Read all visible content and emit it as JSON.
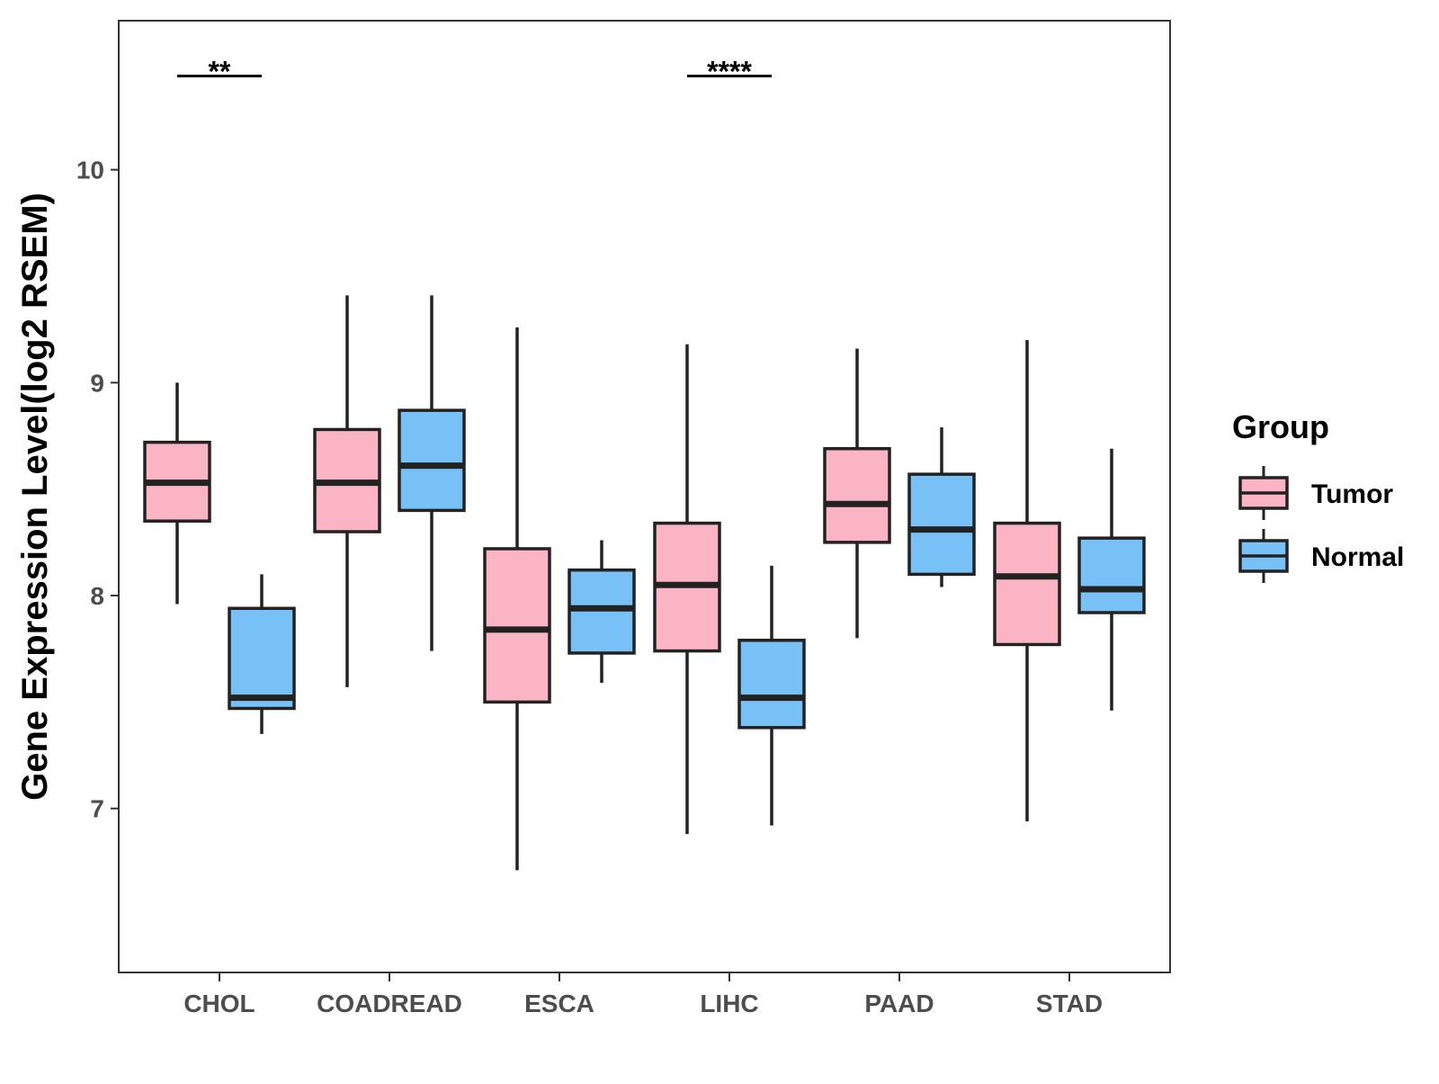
{
  "chart_data": {
    "type": "boxplot",
    "title": "",
    "xlabel": "",
    "ylabel": "Gene Expression Level(log2 RSEM)",
    "ylim": [
      6.23,
      10.7
    ],
    "yticks": [
      7,
      8,
      9,
      10
    ],
    "ytick_labels": [
      "7",
      "8",
      "9",
      "10"
    ],
    "grid": false,
    "categories": [
      "CHOL",
      "COADREAD",
      "ESCA",
      "LIHC",
      "PAAD",
      "STAD"
    ],
    "legend": {
      "title": "Group",
      "position": "right",
      "entries": [
        {
          "name": "Tumor",
          "color": "#fbb4c4"
        },
        {
          "name": "Normal",
          "color": "#78c1f6"
        }
      ]
    },
    "series": [
      {
        "name": "Tumor",
        "color": "#fbb4c4",
        "boxes": [
          {
            "category": "CHOL",
            "whisker_low": 7.96,
            "q1": 8.35,
            "median": 8.53,
            "q3": 8.72,
            "whisker_high": 9.0
          },
          {
            "category": "COADREAD",
            "whisker_low": 7.57,
            "q1": 8.3,
            "median": 8.53,
            "q3": 8.78,
            "whisker_high": 9.41
          },
          {
            "category": "ESCA",
            "whisker_low": 6.71,
            "q1": 7.5,
            "median": 7.84,
            "q3": 8.22,
            "whisker_high": 9.26
          },
          {
            "category": "LIHC",
            "whisker_low": 6.88,
            "q1": 7.74,
            "median": 8.05,
            "q3": 8.34,
            "whisker_high": 9.18
          },
          {
            "category": "PAAD",
            "whisker_low": 7.8,
            "q1": 8.25,
            "median": 8.43,
            "q3": 8.69,
            "whisker_high": 9.16
          },
          {
            "category": "STAD",
            "whisker_low": 6.94,
            "q1": 7.77,
            "median": 8.09,
            "q3": 8.34,
            "whisker_high": 9.2
          }
        ]
      },
      {
        "name": "Normal",
        "color": "#78c1f6",
        "boxes": [
          {
            "category": "CHOL",
            "whisker_low": 7.35,
            "q1": 7.47,
            "median": 7.52,
            "q3": 7.94,
            "whisker_high": 8.1
          },
          {
            "category": "COADREAD",
            "whisker_low": 7.74,
            "q1": 8.4,
            "median": 8.61,
            "q3": 8.87,
            "whisker_high": 9.41
          },
          {
            "category": "ESCA",
            "whisker_low": 7.59,
            "q1": 7.73,
            "median": 7.94,
            "q3": 8.12,
            "whisker_high": 8.26
          },
          {
            "category": "LIHC",
            "whisker_low": 6.92,
            "q1": 7.38,
            "median": 7.52,
            "q3": 7.79,
            "whisker_high": 8.14
          },
          {
            "category": "PAAD",
            "whisker_low": 8.04,
            "q1": 8.1,
            "median": 8.31,
            "q3": 8.57,
            "whisker_high": 8.79
          },
          {
            "category": "STAD",
            "whisker_low": 7.46,
            "q1": 7.92,
            "median": 8.03,
            "q3": 8.27,
            "whisker_high": 8.69
          }
        ]
      }
    ],
    "annotations": [
      {
        "category": "CHOL",
        "label": "**",
        "y": 10.44
      },
      {
        "category": "LIHC",
        "label": "****",
        "y": 10.44
      }
    ]
  }
}
